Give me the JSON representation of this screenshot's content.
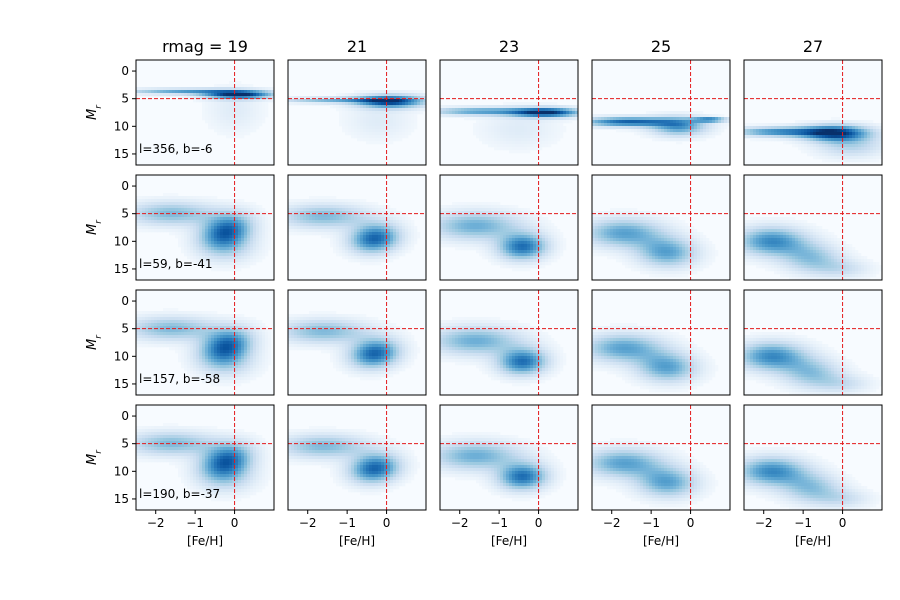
{
  "chart_data": {
    "type": "heatmap",
    "colormap": "Blues",
    "column_titles": [
      "rmag = 19",
      "21",
      "23",
      "25",
      "27"
    ],
    "row_labels": [
      "l=356, b=-6",
      "l=59, b=-41",
      "l=157, b=-58",
      "l=190, b=-37"
    ],
    "xlabel": "[Fe/H]",
    "ylabel_base": "M",
    "ylabel_sub": "r",
    "xlim": [
      -2.5,
      1.0
    ],
    "ylim": [
      17,
      -2
    ],
    "xticks": [
      -2,
      -1,
      0
    ],
    "xtick_labels": [
      "−2",
      "−1",
      "0"
    ],
    "yticks": [
      0,
      5,
      10,
      15
    ],
    "ytick_labels": [
      "0",
      "5",
      "10",
      "15"
    ],
    "reference_lines": {
      "feh": 0,
      "mr": 5,
      "color": "#e41a1c",
      "style": "dashed"
    },
    "colors": {
      "low": "#f7fbff",
      "high": "#08306b"
    },
    "panels": [
      [
        {
          "blobs": [
            {
              "x": -1.2,
              "y": 3.7,
              "sx": 1.1,
              "sy": 0.35,
              "w": 0.55,
              "rot": 0
            },
            {
              "x": 0.1,
              "y": 4.3,
              "sx": 0.6,
              "sy": 0.5,
              "w": 0.95,
              "rot": 0
            },
            {
              "x": 0.0,
              "y": 7.0,
              "sx": 0.5,
              "sy": 3.0,
              "w": 0.12,
              "rot": 0
            }
          ]
        },
        {
          "blobs": [
            {
              "x": -1.3,
              "y": 5.3,
              "sx": 1.0,
              "sy": 0.35,
              "w": 0.45,
              "rot": 0
            },
            {
              "x": 0.1,
              "y": 5.5,
              "sx": 0.6,
              "sy": 0.8,
              "w": 0.9,
              "rot": 0
            },
            {
              "x": -0.2,
              "y": 9.0,
              "sx": 0.6,
              "sy": 2.5,
              "w": 0.12,
              "rot": 0
            }
          ]
        },
        {
          "blobs": [
            {
              "x": -1.5,
              "y": 7.3,
              "sx": 0.9,
              "sy": 0.5,
              "w": 0.55,
              "rot": 0
            },
            {
              "x": 0.2,
              "y": 7.5,
              "sx": 0.6,
              "sy": 0.6,
              "w": 0.95,
              "rot": 0
            },
            {
              "x": -0.5,
              "y": 10.5,
              "sx": 0.7,
              "sy": 2.5,
              "w": 0.12,
              "rot": 0
            }
          ]
        },
        {
          "blobs": [
            {
              "x": -1.6,
              "y": 9.2,
              "sx": 0.8,
              "sy": 0.6,
              "w": 0.8,
              "rot": 0
            },
            {
              "x": -0.3,
              "y": 10.0,
              "sx": 0.5,
              "sy": 1.2,
              "w": 0.6,
              "rot": 0
            },
            {
              "x": 0.5,
              "y": 8.8,
              "sx": 0.3,
              "sy": 0.3,
              "w": 0.7,
              "rot": 0
            }
          ]
        },
        {
          "blobs": [
            {
              "x": -1.6,
              "y": 11.0,
              "sx": 0.8,
              "sy": 0.6,
              "w": 0.65,
              "rot": 0
            },
            {
              "x": -0.2,
              "y": 11.2,
              "sx": 0.6,
              "sy": 1.0,
              "w": 0.9,
              "rot": 0
            },
            {
              "x": 0.2,
              "y": 13.5,
              "sx": 0.6,
              "sy": 1.5,
              "w": 0.3,
              "rot": 0
            }
          ]
        }
      ],
      [
        {
          "blobs": [
            {
              "x": -1.6,
              "y": 5.0,
              "sx": 0.8,
              "sy": 1.5,
              "w": 0.45,
              "rot": 0
            },
            {
              "x": -0.2,
              "y": 8.0,
              "sx": 0.4,
              "sy": 2.3,
              "w": 0.75,
              "rot": 0.5
            },
            {
              "x": -0.2,
              "y": 11.0,
              "sx": 0.5,
              "sy": 2.0,
              "w": 0.3,
              "rot": 0
            }
          ]
        },
        {
          "blobs": [
            {
              "x": -1.6,
              "y": 5.5,
              "sx": 0.8,
              "sy": 1.5,
              "w": 0.45,
              "rot": 0
            },
            {
              "x": -0.3,
              "y": 9.5,
              "sx": 0.4,
              "sy": 2.0,
              "w": 0.8,
              "rot": 0.5
            }
          ]
        },
        {
          "blobs": [
            {
              "x": -1.6,
              "y": 7.2,
              "sx": 0.8,
              "sy": 1.8,
              "w": 0.5,
              "rot": 0
            },
            {
              "x": -0.4,
              "y": 11.0,
              "sx": 0.4,
              "sy": 1.8,
              "w": 0.75,
              "rot": 0.5
            }
          ]
        },
        {
          "blobs": [
            {
              "x": -1.7,
              "y": 8.5,
              "sx": 0.7,
              "sy": 1.8,
              "w": 0.55,
              "rot": 0
            },
            {
              "x": -0.6,
              "y": 12.0,
              "sx": 0.5,
              "sy": 2.0,
              "w": 0.55,
              "rot": 0.5
            }
          ]
        },
        {
          "blobs": [
            {
              "x": -1.8,
              "y": 10.0,
              "sx": 0.6,
              "sy": 1.8,
              "w": 0.65,
              "rot": 0
            },
            {
              "x": -0.8,
              "y": 13.0,
              "sx": 0.5,
              "sy": 2.0,
              "w": 0.4,
              "rot": 0.5
            },
            {
              "x": 0.0,
              "y": 15.0,
              "sx": 0.5,
              "sy": 1.2,
              "w": 0.2,
              "rot": 0
            }
          ]
        }
      ],
      [
        {
          "blobs": [
            {
              "x": -1.6,
              "y": 5.0,
              "sx": 0.8,
              "sy": 1.5,
              "w": 0.45,
              "rot": 0
            },
            {
              "x": -0.2,
              "y": 8.0,
              "sx": 0.4,
              "sy": 2.3,
              "w": 0.75,
              "rot": 0.5
            },
            {
              "x": -0.2,
              "y": 11.0,
              "sx": 0.5,
              "sy": 2.0,
              "w": 0.3,
              "rot": 0
            }
          ]
        },
        {
          "blobs": [
            {
              "x": -1.6,
              "y": 5.5,
              "sx": 0.8,
              "sy": 1.5,
              "w": 0.45,
              "rot": 0
            },
            {
              "x": -0.3,
              "y": 9.5,
              "sx": 0.4,
              "sy": 2.0,
              "w": 0.8,
              "rot": 0.5
            }
          ]
        },
        {
          "blobs": [
            {
              "x": -1.6,
              "y": 7.2,
              "sx": 0.8,
              "sy": 1.8,
              "w": 0.5,
              "rot": 0
            },
            {
              "x": -0.4,
              "y": 11.0,
              "sx": 0.4,
              "sy": 1.8,
              "w": 0.75,
              "rot": 0.5
            }
          ]
        },
        {
          "blobs": [
            {
              "x": -1.7,
              "y": 8.5,
              "sx": 0.7,
              "sy": 1.8,
              "w": 0.55,
              "rot": 0
            },
            {
              "x": -0.6,
              "y": 12.0,
              "sx": 0.5,
              "sy": 2.0,
              "w": 0.55,
              "rot": 0.5
            }
          ]
        },
        {
          "blobs": [
            {
              "x": -1.8,
              "y": 10.0,
              "sx": 0.6,
              "sy": 1.8,
              "w": 0.65,
              "rot": 0
            },
            {
              "x": -0.8,
              "y": 13.0,
              "sx": 0.5,
              "sy": 2.0,
              "w": 0.4,
              "rot": 0.5
            },
            {
              "x": 0.0,
              "y": 15.0,
              "sx": 0.5,
              "sy": 1.2,
              "w": 0.2,
              "rot": 0
            }
          ]
        }
      ],
      [
        {
          "blobs": [
            {
              "x": -1.6,
              "y": 5.0,
              "sx": 0.8,
              "sy": 1.5,
              "w": 0.45,
              "rot": 0
            },
            {
              "x": -0.2,
              "y": 8.0,
              "sx": 0.4,
              "sy": 2.3,
              "w": 0.75,
              "rot": 0.5
            },
            {
              "x": -0.2,
              "y": 11.0,
              "sx": 0.5,
              "sy": 2.0,
              "w": 0.3,
              "rot": 0
            }
          ]
        },
        {
          "blobs": [
            {
              "x": -1.6,
              "y": 5.5,
              "sx": 0.8,
              "sy": 1.5,
              "w": 0.45,
              "rot": 0
            },
            {
              "x": -0.3,
              "y": 9.5,
              "sx": 0.4,
              "sy": 2.0,
              "w": 0.8,
              "rot": 0.5
            }
          ]
        },
        {
          "blobs": [
            {
              "x": -1.6,
              "y": 7.2,
              "sx": 0.8,
              "sy": 1.8,
              "w": 0.5,
              "rot": 0
            },
            {
              "x": -0.4,
              "y": 11.0,
              "sx": 0.4,
              "sy": 1.8,
              "w": 0.75,
              "rot": 0.5
            }
          ]
        },
        {
          "blobs": [
            {
              "x": -1.7,
              "y": 8.5,
              "sx": 0.7,
              "sy": 1.8,
              "w": 0.55,
              "rot": 0
            },
            {
              "x": -0.6,
              "y": 12.0,
              "sx": 0.5,
              "sy": 2.0,
              "w": 0.55,
              "rot": 0.5
            }
          ]
        },
        {
          "blobs": [
            {
              "x": -1.8,
              "y": 10.0,
              "sx": 0.6,
              "sy": 1.8,
              "w": 0.65,
              "rot": 0
            },
            {
              "x": -0.8,
              "y": 13.0,
              "sx": 0.5,
              "sy": 2.0,
              "w": 0.4,
              "rot": 0.5
            },
            {
              "x": 0.0,
              "y": 15.0,
              "sx": 0.5,
              "sy": 1.2,
              "w": 0.2,
              "rot": 0
            }
          ]
        }
      ]
    ]
  }
}
